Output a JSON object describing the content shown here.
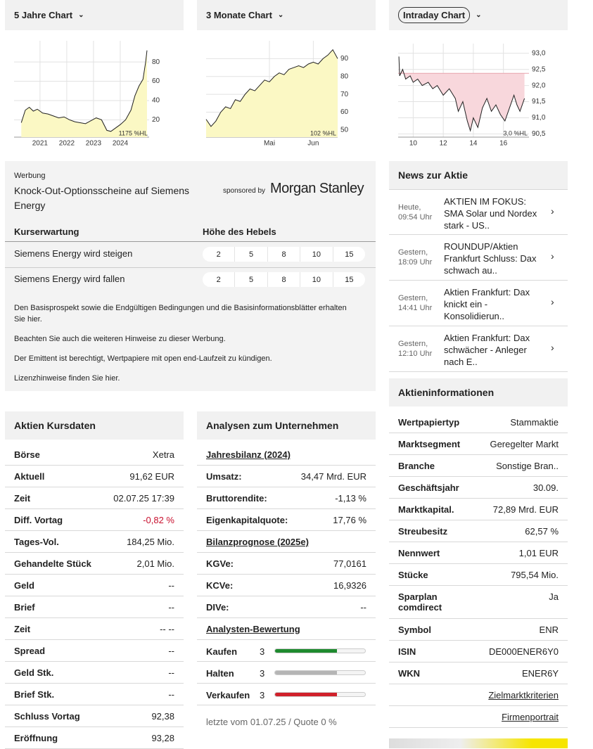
{
  "charts": [
    {
      "tab": "5 Jahre Chart",
      "chart_data": {
        "type": "area",
        "x": [
          2020.3,
          2020.45,
          2020.6,
          2020.75,
          2020.9,
          2021.1,
          2021.3,
          2021.5,
          2021.7,
          2021.9,
          2022.1,
          2022.3,
          2022.5,
          2022.7,
          2022.9,
          2023.1,
          2023.3,
          2023.5,
          2023.65,
          2023.8,
          2024.0,
          2024.2,
          2024.4,
          2024.55,
          2024.7,
          2024.85,
          2024.95,
          2025.0
        ],
        "values": [
          17,
          30,
          33,
          29,
          31,
          27,
          26,
          24,
          22,
          23,
          20,
          18,
          17,
          16,
          19,
          22,
          20,
          9,
          8,
          11,
          15,
          20,
          30,
          45,
          55,
          62,
          80,
          92
        ],
        "xlim": [
          2020.03,
          2025.08
        ],
        "xticks": [
          2021,
          2022,
          2023,
          2024
        ],
        "ylim": [
          2,
          102
        ],
        "yticks": [
          20,
          40,
          60,
          80
        ],
        "grid": true,
        "color": "#222222",
        "fill": "#fbf8c4",
        "note": "1175 %HL"
      }
    },
    {
      "tab": "3 Monate Chart",
      "chart_data": {
        "type": "area",
        "values": [
          56,
          52,
          55,
          60,
          63,
          62,
          67,
          66,
          70,
          73,
          72,
          75,
          78,
          77,
          80,
          82,
          81,
          84,
          85,
          86,
          85,
          87,
          88,
          87,
          90,
          92,
          95,
          90
        ],
        "xlim": [
          0,
          27
        ],
        "xticks": [
          {
            "value": 13,
            "label": "Mai"
          },
          {
            "value": 22,
            "label": "Jun"
          }
        ],
        "ylim": [
          46,
          100
        ],
        "yticks": [
          50,
          60,
          70,
          80,
          90
        ],
        "grid": true,
        "color": "#222222",
        "fill": "#fbf8c4",
        "note": "102 %HL"
      }
    },
    {
      "tab": "Intraday Chart",
      "chart_data": {
        "type": "line",
        "x": [
          9.05,
          9.1,
          9.3,
          9.5,
          9.8,
          10,
          10.3,
          10.6,
          11,
          11.3,
          11.6,
          12,
          12.4,
          12.8,
          13,
          13.3,
          13.6,
          13.8,
          14,
          14.3,
          14.6,
          14.9,
          15.2,
          15.5,
          15.8,
          16.1,
          16.4,
          16.7,
          16.9,
          17.1,
          17.4
        ],
        "values": [
          92.9,
          92.3,
          92.5,
          92.2,
          92.3,
          92.1,
          92.2,
          92.0,
          92.1,
          91.9,
          92.0,
          91.7,
          91.9,
          91.6,
          91.2,
          91.5,
          90.9,
          90.6,
          91.0,
          90.7,
          91.3,
          91.6,
          91.2,
          91.4,
          91.1,
          90.9,
          91.3,
          91.7,
          91.4,
          91.2,
          91.6
        ],
        "xlim": [
          9,
          17.7
        ],
        "xticks": [
          10,
          12,
          14,
          16
        ],
        "ylim": [
          90.4,
          93.3
        ],
        "yticks": [
          {
            "value": 90.5,
            "label": "90,5"
          },
          {
            "value": 91,
            "label": "91,0"
          },
          {
            "value": 91.5,
            "label": "91,5"
          },
          {
            "value": 92,
            "label": "92,0"
          },
          {
            "value": 92.5,
            "label": "92,5"
          },
          {
            "value": 93,
            "label": "93,0"
          }
        ],
        "reference": 92.38,
        "grid": true,
        "color": "#222222",
        "fill": "#f8d7dc",
        "note": "3,0 %HL"
      }
    }
  ],
  "ad": {
    "label": "Werbung",
    "title": "Knock-Out-Optionsscheine auf Siemens Energy",
    "sponsored": "sponsored by",
    "sponsor": "Morgan Stanley",
    "col1": "Kurserwartung",
    "col2": "Höhe des Hebels",
    "rows": [
      {
        "label": "Siemens Energy wird steigen",
        "levers": [
          2,
          5,
          8,
          10,
          15
        ]
      },
      {
        "label": "Siemens Energy wird fallen",
        "levers": [
          2,
          5,
          8,
          10,
          15
        ]
      }
    ],
    "notes": [
      "Den Basisprospekt sowie die Endgültigen Bedingungen und die Basisinformationsblätter erhalten Sie hier.",
      "Beachten Sie auch die weiteren Hinweise zu dieser Werbung.",
      "Der Emittent ist berechtigt, Wertpapiere mit open end-Laufzeit zu kündigen.",
      "Lizenzhinweise finden Sie hier."
    ]
  },
  "news": {
    "title": "News zur Aktie",
    "items": [
      {
        "date": "Heute,",
        "time": "09:54 Uhr",
        "headline": "AKTIEN IM FOKUS: SMA Solar und Nordex stark - US.."
      },
      {
        "date": "Gestern,",
        "time": "18:09 Uhr",
        "headline": "ROUNDUP/Aktien Frankfurt Schluss: Dax schwach au.."
      },
      {
        "date": "Gestern,",
        "time": "14:41 Uhr",
        "headline": "Aktien Frankfurt: Dax knickt ein - Konsolidierun.."
      },
      {
        "date": "Gestern,",
        "time": "12:10 Uhr",
        "headline": "Aktien Frankfurt: Dax schwächer - Anleger nach E.."
      }
    ]
  },
  "kursdaten": {
    "title": "Aktien Kursdaten",
    "rows": [
      {
        "label": "Börse",
        "value": "Xetra"
      },
      {
        "label": "Aktuell",
        "value": "91,62 EUR"
      },
      {
        "label": "Zeit",
        "value": "02.07.25 17:39"
      },
      {
        "label": "Diff. Vortag",
        "value": "-0,82 %",
        "color": "#c8102e"
      },
      {
        "label": "Tages-Vol.",
        "value": "184,25 Mio."
      },
      {
        "label": "Gehandelte Stück",
        "value": "2,01 Mio."
      },
      {
        "label": "Geld",
        "value": "--"
      },
      {
        "label": "Brief",
        "value": "--"
      },
      {
        "label": "Zeit",
        "value": "-- --"
      },
      {
        "label": "Spread",
        "value": "--"
      },
      {
        "label": "Geld Stk.",
        "value": "--"
      },
      {
        "label": "Brief Stk.",
        "value": "--"
      },
      {
        "label": "Schluss Vortag",
        "value": "92,38"
      },
      {
        "label": "Eröffnung",
        "value": "93,28"
      }
    ]
  },
  "analysen": {
    "title": "Analysen zum Unternehmen",
    "rows": [
      {
        "heading": "Jahresbilanz (2024)"
      },
      {
        "label": "Umsatz:",
        "value": "34,47 Mrd. EUR"
      },
      {
        "label": "Bruttorendite:",
        "value": "-1,13 %"
      },
      {
        "label": "Eigenkapitalquote:",
        "value": "17,76 %"
      },
      {
        "heading": "Bilanzprognose (2025e)"
      },
      {
        "label": "KGVe:",
        "value": "77,0161"
      },
      {
        "label": "KCVe:",
        "value": "16,9326"
      },
      {
        "label": "DIVe:",
        "value": "--"
      },
      {
        "heading": "Analysten-Bewertung"
      }
    ],
    "ratings": [
      {
        "label": "Kaufen",
        "count": 3,
        "color": "#1e8a2e"
      },
      {
        "label": "Halten",
        "count": 3,
        "color": "#b5b5b5"
      },
      {
        "label": "Verkaufen",
        "count": 3,
        "color": "#d0202a"
      }
    ],
    "footer": "letzte vom 01.07.25 / Quote 0 %"
  },
  "info": {
    "title": "Aktieninformationen",
    "rows": [
      {
        "label": "Wertpapiertyp",
        "value": "Stammaktie"
      },
      {
        "label": "Marktsegment",
        "value": "Geregelter Markt"
      },
      {
        "label": "Branche",
        "value": "Sonstige Bran.."
      },
      {
        "label": "Geschäftsjahr",
        "value": "30.09."
      },
      {
        "label": "Marktkapital.",
        "value": "72,89 Mrd. EUR"
      },
      {
        "label": "Streubesitz",
        "value": "62,57 %"
      },
      {
        "label": "Nennwert",
        "value": "1,01 EUR"
      },
      {
        "label": "Stücke",
        "value": "795,54 Mio."
      },
      {
        "label": "Sparplan comdirect",
        "value": "Ja"
      },
      {
        "label": "Symbol",
        "value": "ENR"
      },
      {
        "label": "ISIN",
        "value": "DE000ENER6Y0"
      },
      {
        "label": "WKN",
        "value": "ENER6Y"
      }
    ],
    "links": [
      "Zielmarktkriterien",
      "Firmenportrait"
    ]
  }
}
